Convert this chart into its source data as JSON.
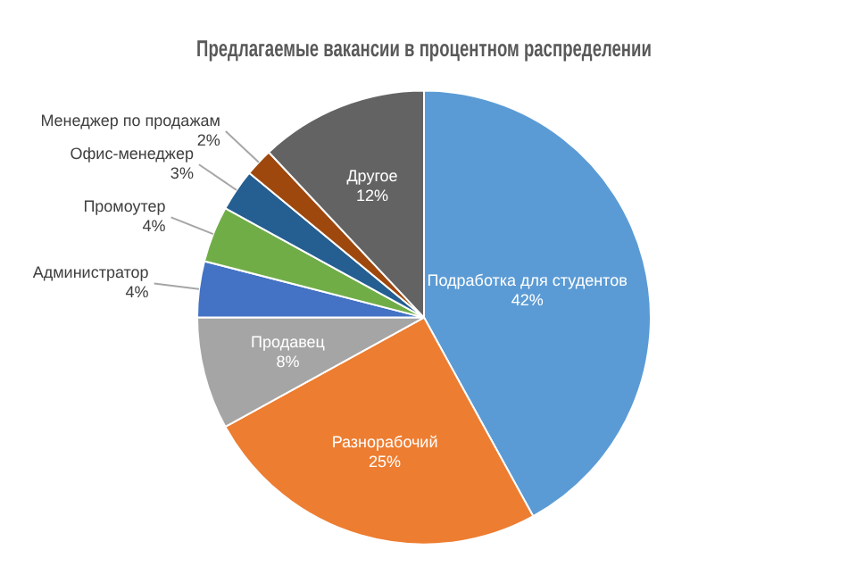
{
  "chart_data": {
    "type": "pie",
    "title": "Предлагаемые вакансии в процентном распределении",
    "categories": [
      "Подработка для студентов",
      "Разнорабочий",
      "Продавец",
      "Администратор",
      "Промоутер",
      "Офис-менеджер",
      "Менеджер по продажам",
      "Другое"
    ],
    "values": [
      42,
      25,
      8,
      4,
      4,
      3,
      2,
      12
    ],
    "value_labels": [
      "42%",
      "25%",
      "8%",
      "4%",
      "4%",
      "3%",
      "2%",
      "12%"
    ],
    "colors": [
      "#5b9bd5",
      "#ed7d31",
      "#a5a5a5",
      "#4472c4",
      "#70ad47",
      "#255e91",
      "#9e480e",
      "#636363"
    ],
    "legend": false
  }
}
